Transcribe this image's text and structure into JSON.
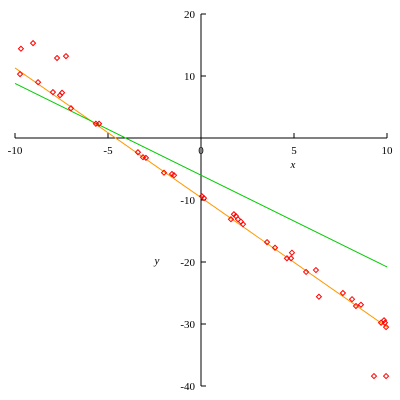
{
  "chart_data": {
    "type": "scatter",
    "xlabel": "x",
    "ylabel": "y",
    "xlim": [
      -10,
      10
    ],
    "ylim": [
      -40,
      20
    ],
    "xticks": [
      -10,
      -5,
      0,
      5,
      10
    ],
    "yticks": [
      -40,
      -30,
      -20,
      -10,
      10,
      20
    ],
    "color": "#ff0000",
    "x": [
      -9.68,
      -9.03,
      -9.73,
      -8.76,
      -7.74,
      -7.26,
      -7.96,
      -7.58,
      -7.47,
      -6.99,
      -5.65,
      -5.48,
      -3.39,
      -3.12,
      -2.96,
      -1.99,
      -1.56,
      -1.45,
      0.05,
      0.16,
      1.61,
      1.77,
      1.88,
      1.99,
      2.15,
      2.26,
      3.55,
      3.98,
      4.62,
      4.89,
      4.84,
      5.65,
      6.18,
      6.34,
      7.63,
      8.12,
      8.33,
      8.6,
      9.3,
      9.68,
      9.84,
      9.89,
      9.95,
      9.95
    ],
    "values": [
      14.4,
      15.3,
      10.3,
      9.0,
      12.9,
      13.2,
      7.4,
      6.9,
      7.3,
      4.8,
      2.3,
      2.3,
      -2.3,
      -3.1,
      -3.2,
      -5.6,
      -5.8,
      -6.0,
      -9.4,
      -9.7,
      -13.1,
      -12.3,
      -12.6,
      -13.1,
      -13.5,
      -13.9,
      -16.8,
      -17.7,
      -19.4,
      -18.5,
      -19.4,
      -21.6,
      -21.3,
      -25.6,
      -25.0,
      -26.0,
      -27.1,
      -26.9,
      -38.4,
      -29.8,
      -29.4,
      -29.8,
      -30.5,
      -38.4
    ],
    "series": [
      {
        "color": "#ff9900",
        "x": [
          -10,
          10
        ],
        "values": [
          11.3,
          -30.5
        ]
      },
      {
        "color": "#00cc00",
        "x": [
          -10,
          10
        ],
        "values": [
          8.8,
          -20.8
        ]
      }
    ]
  }
}
